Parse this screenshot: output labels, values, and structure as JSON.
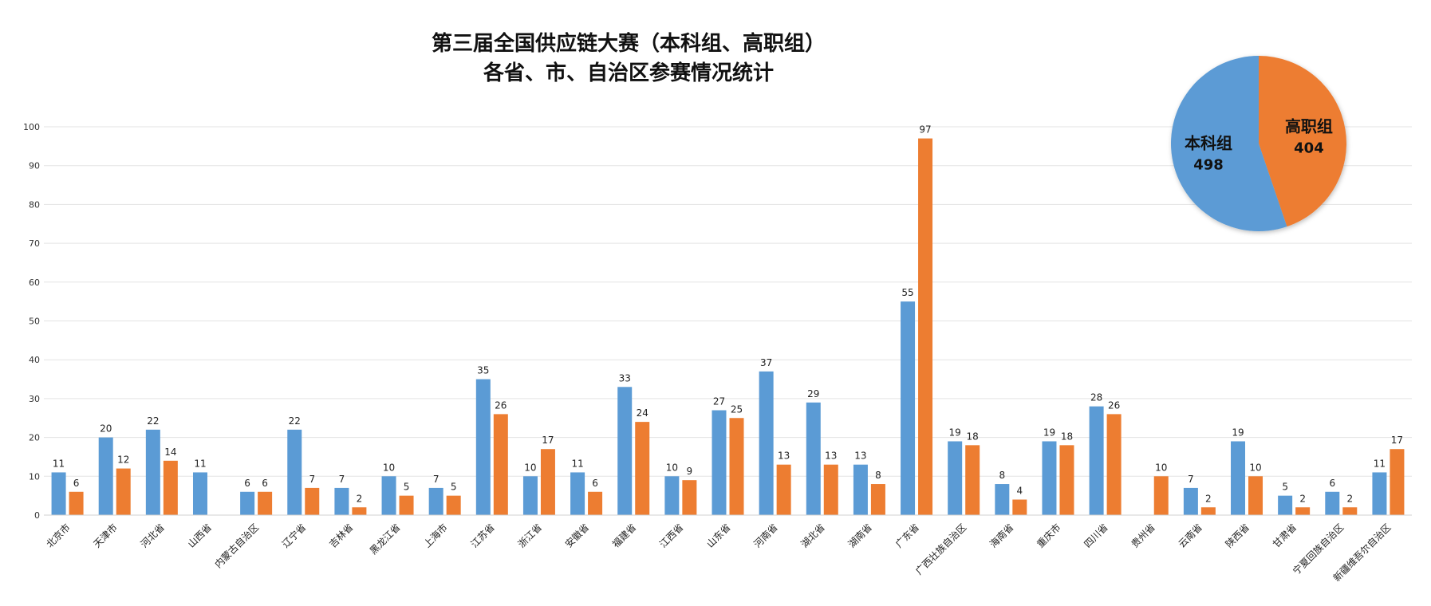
{
  "chart_data": [
    {
      "type": "bar",
      "title": "第三届全国供应链大赛（本科组、高职组）",
      "subtitle": "各省、市、自治区参赛情况统计",
      "xlabel": "",
      "ylabel": "",
      "ylim": [
        0,
        100
      ],
      "yticks": [
        0,
        10,
        20,
        30,
        40,
        50,
        60,
        70,
        80,
        90,
        100
      ],
      "grid": true,
      "categories": [
        "北京市",
        "天津市",
        "河北省",
        "山西省",
        "内蒙古自治区",
        "辽宁省",
        "吉林省",
        "黑龙江省",
        "上海市",
        "江苏省",
        "浙江省",
        "安徽省",
        "福建省",
        "江西省",
        "山东省",
        "河南省",
        "湖北省",
        "湖南省",
        "广东省",
        "广西壮族自治区",
        "海南省",
        "重庆市",
        "四川省",
        "贵州省",
        "云南省",
        "陕西省",
        "甘肃省",
        "宁夏回族自治区",
        "新疆维吾尔自治区"
      ],
      "series": [
        {
          "color": "#5b9bd5",
          "values": [
            11,
            20,
            22,
            11,
            6,
            22,
            7,
            10,
            7,
            35,
            10,
            11,
            33,
            10,
            27,
            37,
            29,
            13,
            55,
            19,
            8,
            19,
            28,
            null,
            7,
            19,
            5,
            6,
            11
          ]
        },
        {
          "color": "#ed7d31",
          "values": [
            6,
            12,
            14,
            null,
            6,
            7,
            2,
            5,
            5,
            26,
            17,
            6,
            24,
            9,
            25,
            13,
            13,
            8,
            97,
            18,
            4,
            18,
            26,
            10,
            2,
            10,
            2,
            2,
            17
          ]
        }
      ]
    },
    {
      "type": "pie",
      "legend": "none",
      "slices": [
        {
          "label": "本科组",
          "value": 498,
          "color": "#5b9bd5"
        },
        {
          "label": "高职组",
          "value": 404,
          "color": "#ed7d31"
        }
      ]
    }
  ]
}
